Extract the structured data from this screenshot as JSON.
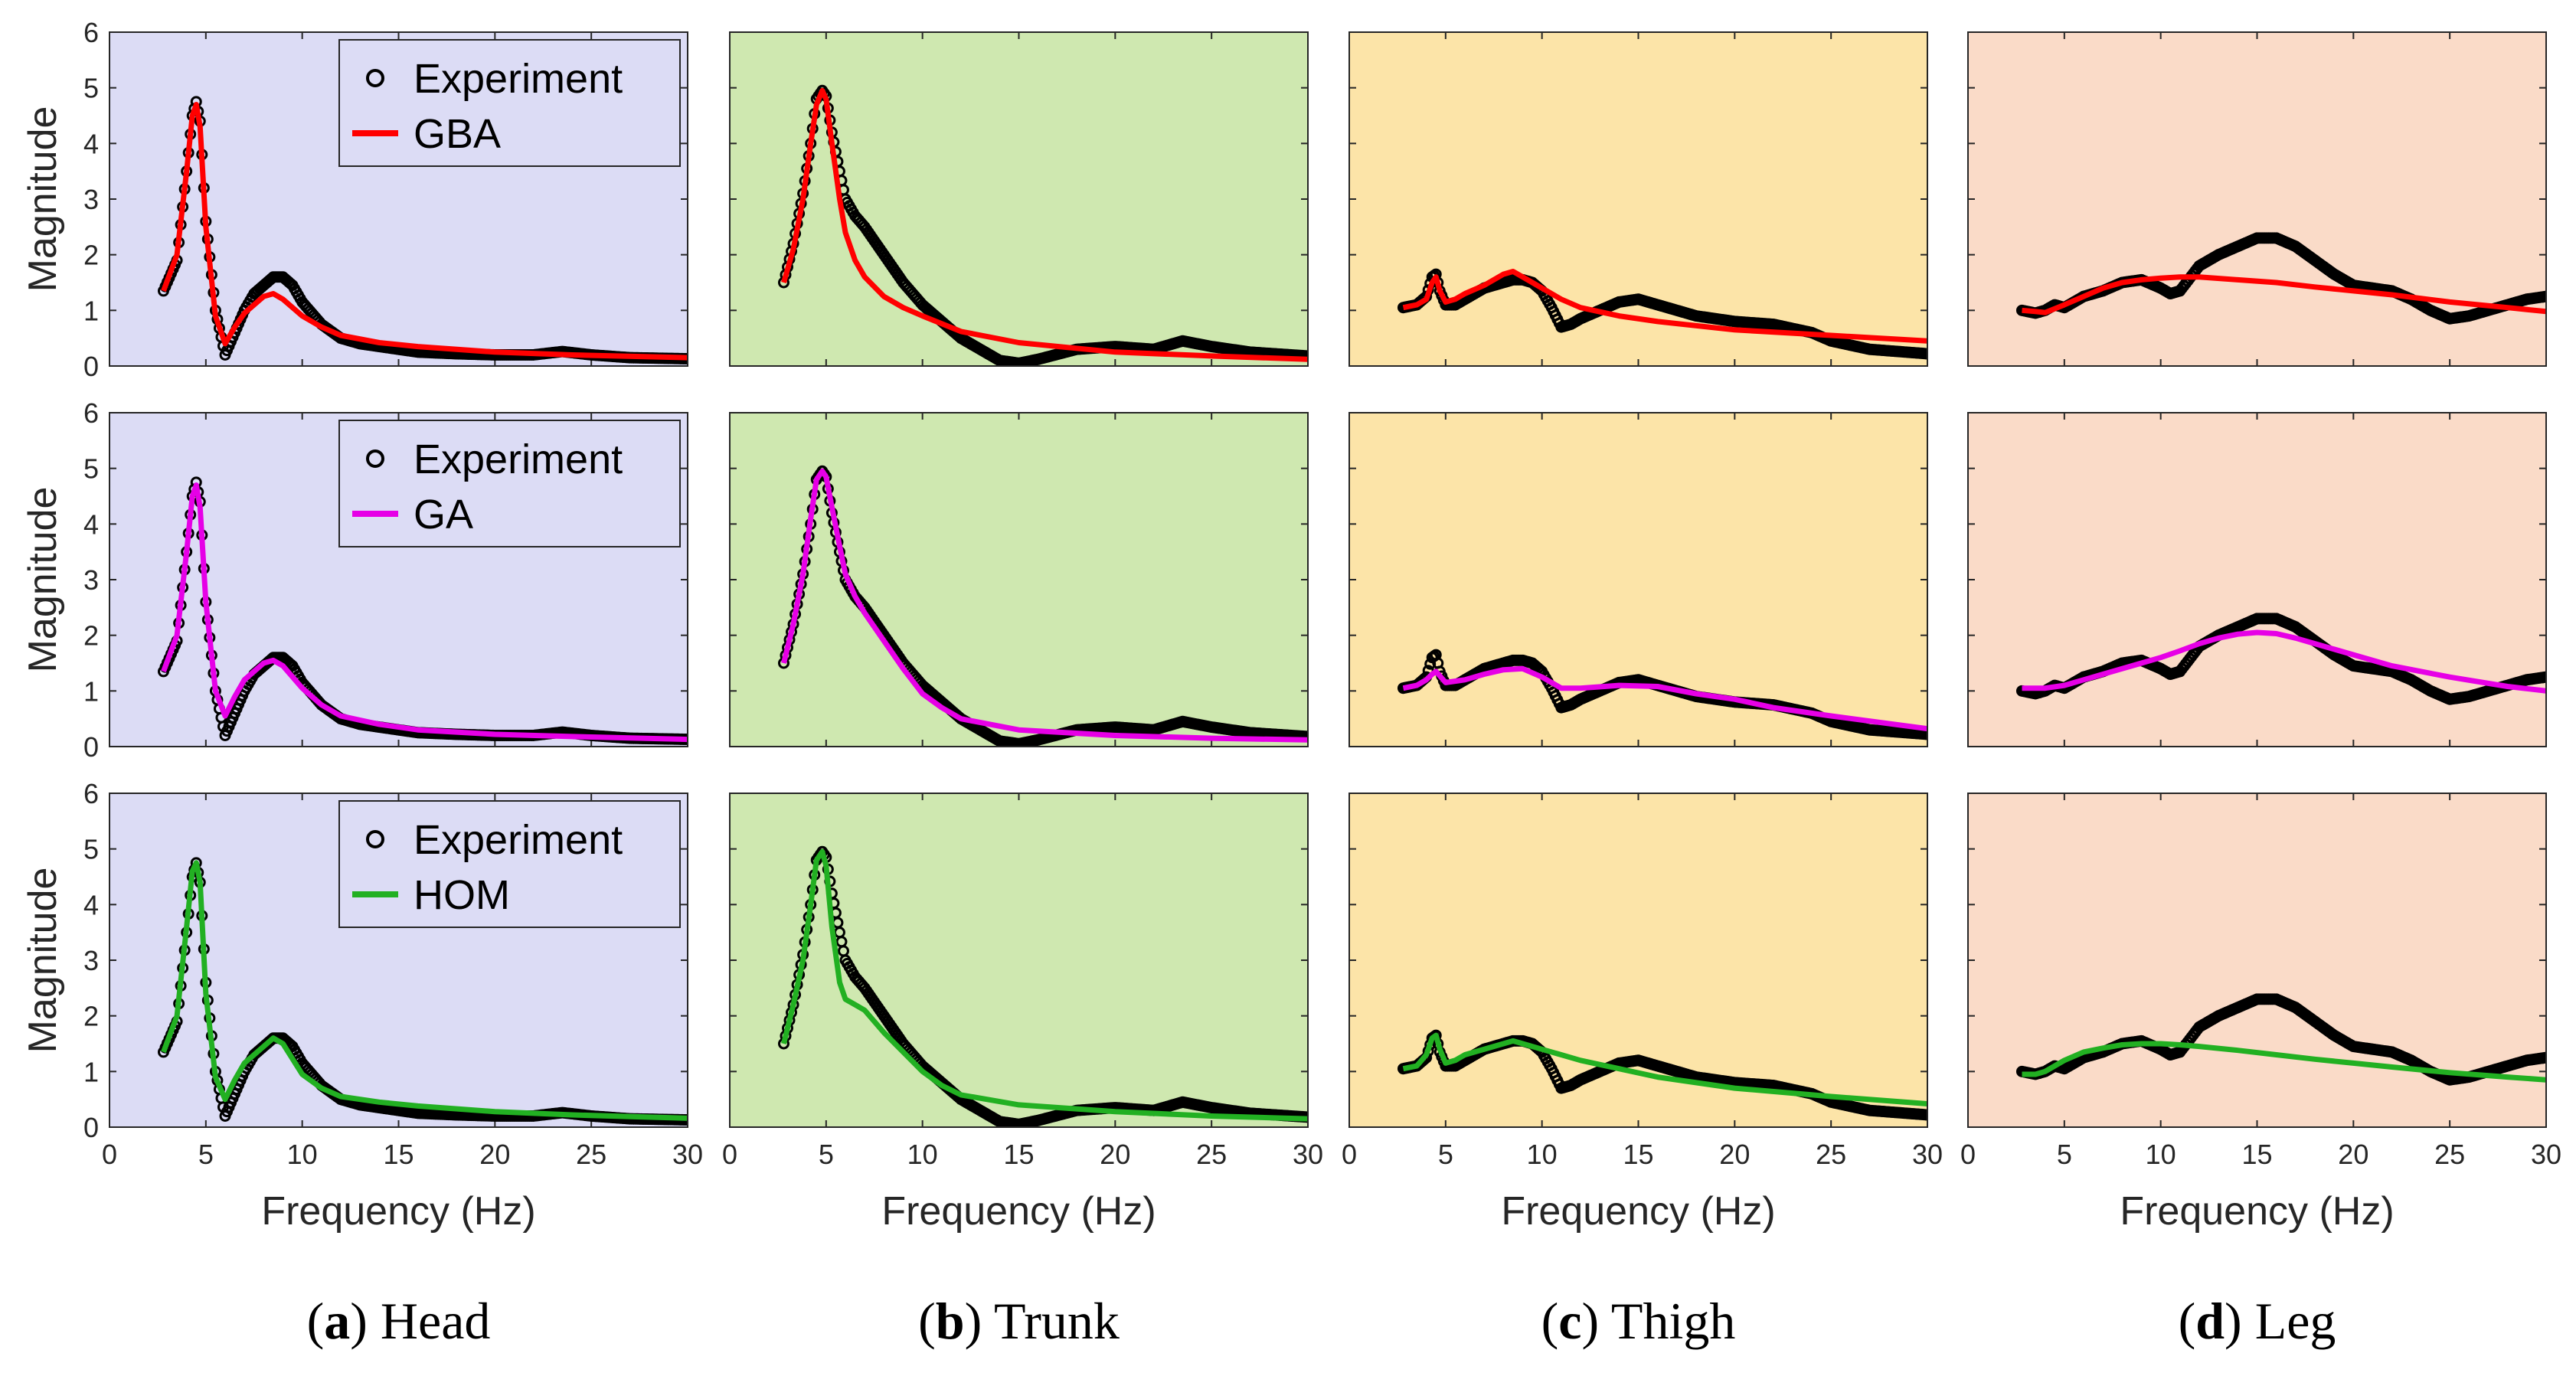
{
  "figure": {
    "xlabel": "Frequency (Hz)",
    "ylabel": "Magnitude",
    "xlim": [
      0,
      30
    ],
    "ylim": [
      0,
      6
    ],
    "xticks": [
      0,
      5,
      10,
      15,
      20,
      25,
      30
    ],
    "yticks": [
      0,
      1,
      2,
      3,
      4,
      5,
      6
    ],
    "experiment_label": "Experiment",
    "methods": [
      {
        "key": "GBA",
        "label": "GBA",
        "color": "#ff0000"
      },
      {
        "key": "GA",
        "label": "GA",
        "color": "#e600e6"
      },
      {
        "key": "HOM",
        "label": "HOM",
        "color": "#22b022"
      }
    ],
    "columns": [
      {
        "key": "head",
        "letter": "a",
        "name": "Head",
        "bg": "#dcdcf5"
      },
      {
        "key": "trunk",
        "letter": "b",
        "name": "Trunk",
        "bg": "#cfe8b0"
      },
      {
        "key": "thigh",
        "letter": "c",
        "name": "Thigh",
        "bg": "#fce4a8"
      },
      {
        "key": "leg",
        "letter": "d",
        "name": "Leg",
        "bg": "#fadbc8"
      }
    ]
  },
  "captions": [
    {
      "letter": "a",
      "open": "(",
      "close": ") ",
      "name": "Head"
    },
    {
      "letter": "b",
      "open": "(",
      "close": ") ",
      "name": "Trunk"
    },
    {
      "letter": "c",
      "open": "(",
      "close": ") ",
      "name": "Thigh"
    },
    {
      "letter": "d",
      "open": "(",
      "close": ") ",
      "name": "Leg"
    }
  ],
  "chart_data": {
    "type": "line",
    "title": "",
    "xlabel": "Frequency (Hz)",
    "ylabel": "Magnitude",
    "xlim": [
      0,
      30
    ],
    "ylim": [
      0,
      6
    ],
    "experiment": {
      "head": {
        "x": [
          2.8,
          3.5,
          4.0,
          4.3,
          4.5,
          4.7,
          5.0,
          5.5,
          6.0,
          6.5,
          7.0,
          7.5,
          8.0,
          8.5,
          9.0,
          9.5,
          10.0,
          11.0,
          12.0,
          13.0,
          14.0,
          15.0,
          16.0,
          18.0,
          20.0,
          22.0,
          23.5,
          25.0,
          27.0,
          30.0
        ],
        "y": [
          1.35,
          1.9,
          3.5,
          4.5,
          4.75,
          4.4,
          2.6,
          1.0,
          0.2,
          0.6,
          1.0,
          1.3,
          1.45,
          1.6,
          1.6,
          1.45,
          1.15,
          0.75,
          0.5,
          0.4,
          0.35,
          0.3,
          0.25,
          0.22,
          0.2,
          0.2,
          0.26,
          0.2,
          0.15,
          0.13
        ]
      },
      "trunk": {
        "x": [
          2.8,
          3.3,
          3.8,
          4.2,
          4.5,
          4.8,
          5.0,
          5.3,
          5.7,
          6.0,
          6.5,
          7.0,
          7.5,
          8.0,
          8.5,
          9.0,
          9.5,
          10.0,
          11.0,
          12.0,
          13.0,
          14.0,
          15.0,
          16.0,
          18.0,
          20.0,
          22.0,
          23.5,
          25.0,
          27.0,
          30.0
        ],
        "y": [
          1.5,
          2.2,
          3.1,
          4.0,
          4.8,
          4.95,
          4.85,
          4.2,
          3.5,
          3.0,
          2.7,
          2.5,
          2.25,
          2.0,
          1.75,
          1.5,
          1.3,
          1.1,
          0.8,
          0.5,
          0.3,
          0.1,
          0.05,
          0.12,
          0.3,
          0.35,
          0.3,
          0.45,
          0.35,
          0.25,
          0.18
        ]
      },
      "thigh": {
        "x": [
          2.8,
          3.5,
          4.0,
          4.3,
          4.5,
          4.7,
          5.0,
          5.5,
          6.0,
          6.5,
          7.0,
          7.5,
          8.0,
          8.5,
          9.0,
          9.5,
          10.0,
          10.5,
          11.0,
          11.5,
          12.0,
          13.0,
          14.0,
          15.0,
          16.0,
          18.0,
          20.0,
          22.0,
          24.0,
          25.0,
          27.0,
          30.0
        ],
        "y": [
          1.05,
          1.1,
          1.25,
          1.6,
          1.65,
          1.35,
          1.1,
          1.1,
          1.2,
          1.3,
          1.4,
          1.45,
          1.5,
          1.55,
          1.55,
          1.5,
          1.35,
          1.05,
          0.7,
          0.75,
          0.85,
          1.0,
          1.15,
          1.2,
          1.1,
          0.9,
          0.8,
          0.75,
          0.6,
          0.45,
          0.3,
          0.22
        ]
      },
      "leg": {
        "x": [
          2.8,
          3.5,
          4.0,
          4.5,
          5.0,
          6.0,
          7.0,
          8.0,
          9.0,
          10.0,
          10.5,
          11.0,
          12.0,
          13.0,
          14.0,
          15.0,
          16.0,
          17.0,
          18.0,
          19.0,
          20.0,
          22.0,
          23.0,
          24.0,
          25.0,
          26.0,
          27.0,
          28.0,
          29.0,
          30.0
        ],
        "y": [
          1.0,
          0.95,
          1.0,
          1.1,
          1.05,
          1.25,
          1.35,
          1.5,
          1.55,
          1.4,
          1.3,
          1.35,
          1.8,
          2.0,
          2.15,
          2.3,
          2.3,
          2.15,
          1.9,
          1.65,
          1.45,
          1.35,
          1.2,
          1.0,
          0.85,
          0.9,
          1.0,
          1.1,
          1.2,
          1.25
        ]
      }
    },
    "models": {
      "GBA": {
        "head": {
          "x": [
            2.8,
            3.5,
            4.0,
            4.3,
            4.5,
            4.7,
            5.0,
            5.5,
            6.0,
            6.5,
            7.0,
            8.0,
            8.5,
            9.0,
            10.0,
            11.0,
            12.0,
            14.0,
            16.0,
            20.0,
            24.0,
            30.0
          ],
          "y": [
            1.35,
            2.0,
            3.5,
            4.5,
            4.7,
            4.3,
            2.5,
            0.9,
            0.4,
            0.7,
            0.95,
            1.25,
            1.3,
            1.2,
            0.9,
            0.7,
            0.55,
            0.42,
            0.35,
            0.25,
            0.2,
            0.15
          ]
        },
        "trunk": {
          "x": [
            2.8,
            3.3,
            3.8,
            4.2,
            4.5,
            4.8,
            5.0,
            5.3,
            5.7,
            6.0,
            6.5,
            7.0,
            8.0,
            9.0,
            10.0,
            12.0,
            15.0,
            20.0,
            25.0,
            30.0
          ],
          "y": [
            1.5,
            2.1,
            3.0,
            4.0,
            4.7,
            4.95,
            4.8,
            4.0,
            3.0,
            2.4,
            1.9,
            1.6,
            1.25,
            1.05,
            0.9,
            0.62,
            0.42,
            0.25,
            0.18,
            0.12
          ]
        },
        "thigh": {
          "x": [
            2.8,
            3.5,
            4.0,
            4.3,
            4.5,
            4.7,
            5.0,
            5.5,
            6.0,
            7.0,
            8.0,
            8.5,
            9.0,
            10.0,
            11.0,
            12.0,
            14.0,
            16.0,
            20.0,
            25.0,
            30.0
          ],
          "y": [
            1.05,
            1.1,
            1.2,
            1.5,
            1.6,
            1.35,
            1.15,
            1.2,
            1.3,
            1.45,
            1.65,
            1.7,
            1.6,
            1.4,
            1.2,
            1.05,
            0.9,
            0.8,
            0.65,
            0.55,
            0.45
          ]
        },
        "leg": {
          "x": [
            2.8,
            3.5,
            4.0,
            5.0,
            6.0,
            7.0,
            8.0,
            9.0,
            10.0,
            11.0,
            12.0,
            14.0,
            16.0,
            18.0,
            20.0,
            22.0,
            25.0,
            28.0,
            30.0
          ],
          "y": [
            1.0,
            0.98,
            0.96,
            1.1,
            1.25,
            1.4,
            1.5,
            1.55,
            1.58,
            1.6,
            1.6,
            1.55,
            1.5,
            1.42,
            1.35,
            1.28,
            1.15,
            1.05,
            0.98
          ]
        }
      },
      "GA": {
        "head": {
          "x": [
            2.8,
            3.5,
            4.0,
            4.3,
            4.5,
            4.7,
            5.0,
            5.5,
            6.0,
            6.5,
            7.0,
            8.0,
            8.5,
            9.0,
            10.0,
            11.0,
            12.0,
            14.0,
            16.0,
            20.0,
            24.0,
            30.0
          ],
          "y": [
            1.35,
            2.0,
            3.5,
            4.5,
            4.7,
            4.3,
            2.6,
            1.0,
            0.55,
            0.9,
            1.2,
            1.5,
            1.55,
            1.45,
            1.05,
            0.75,
            0.55,
            0.4,
            0.3,
            0.22,
            0.18,
            0.13
          ]
        },
        "trunk": {
          "x": [
            2.8,
            3.3,
            3.8,
            4.2,
            4.5,
            4.8,
            5.0,
            5.3,
            5.7,
            6.0,
            6.5,
            7.0,
            8.0,
            9.0,
            10.0,
            11.0,
            12.0,
            15.0,
            20.0,
            25.0,
            30.0
          ],
          "y": [
            1.5,
            2.2,
            3.1,
            4.1,
            4.8,
            4.95,
            4.85,
            4.3,
            3.6,
            3.1,
            2.7,
            2.4,
            1.9,
            1.4,
            0.95,
            0.7,
            0.5,
            0.3,
            0.2,
            0.15,
            0.12
          ]
        },
        "thigh": {
          "x": [
            2.8,
            3.5,
            4.0,
            4.3,
            4.5,
            5.0,
            6.0,
            7.0,
            8.0,
            9.0,
            10.0,
            11.0,
            12.0,
            14.0,
            16.0,
            18.0,
            20.0,
            22.0,
            25.0,
            30.0
          ],
          "y": [
            1.05,
            1.1,
            1.2,
            1.3,
            1.35,
            1.15,
            1.2,
            1.3,
            1.38,
            1.4,
            1.25,
            1.05,
            1.05,
            1.1,
            1.08,
            0.95,
            0.85,
            0.7,
            0.55,
            0.32
          ]
        },
        "leg": {
          "x": [
            2.8,
            3.5,
            4.0,
            5.0,
            6.0,
            7.0,
            8.0,
            9.0,
            10.0,
            11.0,
            12.0,
            13.0,
            14.0,
            15.0,
            16.0,
            17.0,
            18.0,
            20.0,
            22.0,
            25.0,
            28.0,
            30.0
          ],
          "y": [
            1.05,
            1.05,
            1.05,
            1.1,
            1.2,
            1.3,
            1.4,
            1.5,
            1.6,
            1.72,
            1.85,
            1.95,
            2.02,
            2.05,
            2.03,
            1.95,
            1.85,
            1.65,
            1.45,
            1.25,
            1.08,
            1.0
          ]
        }
      },
      "HOM": {
        "head": {
          "x": [
            2.8,
            3.5,
            4.0,
            4.3,
            4.5,
            4.7,
            5.0,
            5.5,
            6.0,
            6.5,
            7.0,
            8.0,
            8.5,
            9.0,
            10.0,
            11.0,
            12.0,
            14.0,
            16.0,
            20.0,
            24.0,
            30.0
          ],
          "y": [
            1.35,
            2.0,
            3.6,
            4.6,
            4.75,
            4.4,
            2.4,
            0.9,
            0.5,
            0.85,
            1.15,
            1.45,
            1.6,
            1.5,
            0.95,
            0.7,
            0.55,
            0.45,
            0.38,
            0.28,
            0.22,
            0.16
          ]
        },
        "trunk": {
          "x": [
            2.8,
            3.3,
            3.8,
            4.2,
            4.5,
            4.8,
            5.0,
            5.3,
            5.7,
            6.0,
            6.5,
            7.0,
            8.0,
            9.0,
            10.0,
            11.0,
            12.0,
            15.0,
            20.0,
            25.0,
            30.0
          ],
          "y": [
            1.5,
            2.2,
            3.0,
            4.0,
            4.8,
            4.95,
            4.7,
            3.6,
            2.6,
            2.3,
            2.2,
            2.1,
            1.7,
            1.35,
            1.0,
            0.75,
            0.58,
            0.4,
            0.28,
            0.2,
            0.15
          ]
        },
        "thigh": {
          "x": [
            2.8,
            3.5,
            4.0,
            4.3,
            4.5,
            4.7,
            5.0,
            5.5,
            6.0,
            7.0,
            8.0,
            8.5,
            9.0,
            10.0,
            11.0,
            12.0,
            14.0,
            16.0,
            20.0,
            25.0,
            30.0
          ],
          "y": [
            1.05,
            1.1,
            1.3,
            1.6,
            1.65,
            1.4,
            1.15,
            1.2,
            1.3,
            1.4,
            1.5,
            1.55,
            1.5,
            1.4,
            1.3,
            1.2,
            1.05,
            0.9,
            0.7,
            0.55,
            0.42
          ]
        },
        "leg": {
          "x": [
            2.8,
            3.5,
            4.0,
            5.0,
            6.0,
            7.0,
            8.0,
            9.0,
            10.0,
            11.0,
            12.0,
            14.0,
            16.0,
            18.0,
            20.0,
            22.0,
            25.0,
            28.0,
            30.0
          ],
          "y": [
            0.95,
            0.95,
            1.0,
            1.2,
            1.35,
            1.42,
            1.48,
            1.5,
            1.5,
            1.48,
            1.45,
            1.38,
            1.3,
            1.22,
            1.15,
            1.08,
            0.98,
            0.9,
            0.85
          ]
        }
      }
    }
  }
}
